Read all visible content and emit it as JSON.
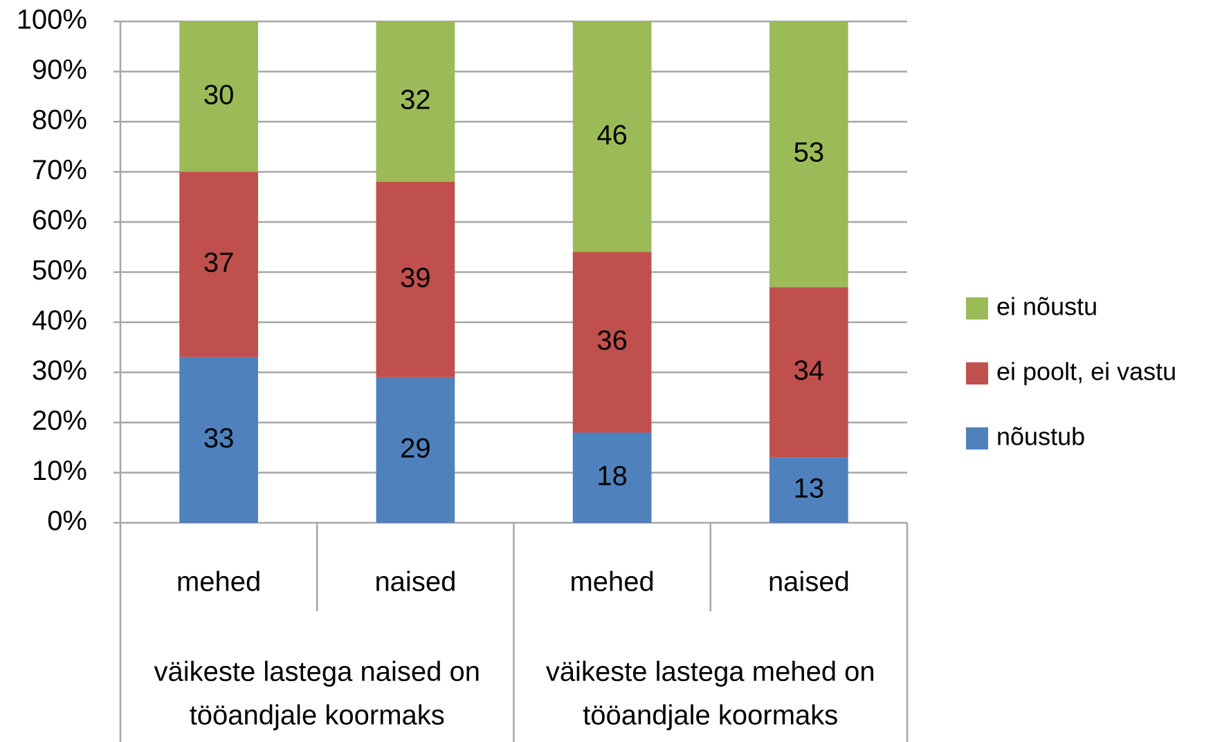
{
  "chart_data": {
    "type": "stacked_bar",
    "categories": [
      "mehed",
      "naised",
      "mehed",
      "naised"
    ],
    "groups": [
      {
        "lines": [
          "väikeste lastega naised on",
          "tööandjale koormaks"
        ]
      },
      {
        "lines": [
          "väikeste lastega mehed on",
          "tööandjale koormaks"
        ]
      }
    ],
    "series": [
      {
        "name": "nõustub",
        "color": "#4f81bd",
        "values": [
          33,
          29,
          18,
          13
        ]
      },
      {
        "name": "ei poolt, ei vastu",
        "color": "#c0504d",
        "values": [
          37,
          39,
          36,
          34
        ]
      },
      {
        "name": "ei nõustu",
        "color": "#9bbb59",
        "values": [
          30,
          32,
          46,
          53
        ]
      }
    ],
    "ylim": [
      0,
      100
    ],
    "yticks": [
      {
        "value": 0,
        "label": "0%"
      },
      {
        "value": 10,
        "label": "10%"
      },
      {
        "value": 20,
        "label": "20%"
      },
      {
        "value": 30,
        "label": "30%"
      },
      {
        "value": 40,
        "label": "40%"
      },
      {
        "value": 50,
        "label": "50%"
      },
      {
        "value": 60,
        "label": "60%"
      },
      {
        "value": 70,
        "label": "70%"
      },
      {
        "value": 80,
        "label": "80%"
      },
      {
        "value": 90,
        "label": "90%"
      },
      {
        "value": 100,
        "label": "100%"
      }
    ],
    "grid": true,
    "legend": "right"
  }
}
